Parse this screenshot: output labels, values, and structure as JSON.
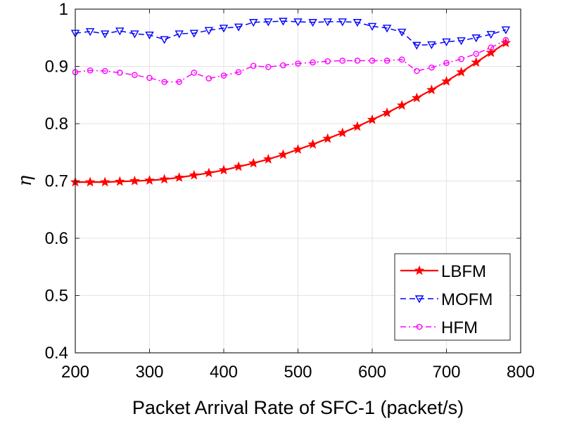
{
  "chart_data": {
    "type": "line",
    "title": "",
    "xlabel": "Packet Arrival Rate of SFC-1 (packet/s)",
    "ylabel": "η",
    "xlim": [
      200,
      800
    ],
    "ylim": [
      0.4,
      1.0
    ],
    "xticks": [
      200,
      300,
      400,
      500,
      600,
      700,
      800
    ],
    "yticks": [
      0.4,
      0.5,
      0.6,
      0.7,
      0.8,
      0.9,
      1.0
    ],
    "xtick_labels": [
      "200",
      "300",
      "400",
      "500",
      "600",
      "700",
      "800"
    ],
    "ytick_labels": [
      "0.4",
      "0.5",
      "0.6",
      "0.7",
      "0.8",
      "0.9",
      "1"
    ],
    "grid": true,
    "legend_position": "bottom-right",
    "x": [
      200,
      220,
      240,
      260,
      280,
      300,
      320,
      340,
      360,
      380,
      400,
      420,
      440,
      460,
      480,
      500,
      520,
      540,
      560,
      580,
      600,
      620,
      640,
      660,
      680,
      700,
      720,
      740,
      760,
      780
    ],
    "series": [
      {
        "name": "LBFM",
        "color": "#ff0000",
        "line_style": "solid",
        "marker": "star",
        "values": [
          0.698,
          0.698,
          0.698,
          0.699,
          0.7,
          0.701,
          0.703,
          0.706,
          0.71,
          0.714,
          0.719,
          0.725,
          0.731,
          0.738,
          0.746,
          0.755,
          0.764,
          0.774,
          0.784,
          0.795,
          0.807,
          0.819,
          0.832,
          0.845,
          0.859,
          0.874,
          0.89,
          0.907,
          0.924,
          0.941
        ]
      },
      {
        "name": "MOFM",
        "color": "#0000ff",
        "line_style": "dashed",
        "marker": "triangle-down",
        "values": [
          0.958,
          0.961,
          0.957,
          0.962,
          0.957,
          0.955,
          0.947,
          0.957,
          0.958,
          0.963,
          0.967,
          0.969,
          0.977,
          0.978,
          0.979,
          0.978,
          0.977,
          0.978,
          0.978,
          0.977,
          0.97,
          0.967,
          0.96,
          0.937,
          0.938,
          0.943,
          0.945,
          0.95,
          0.956,
          0.964
        ]
      },
      {
        "name": "HFM",
        "color": "#ff00ff",
        "line_style": "dashdot",
        "marker": "circle",
        "values": [
          0.89,
          0.893,
          0.892,
          0.889,
          0.885,
          0.88,
          0.873,
          0.873,
          0.889,
          0.879,
          0.884,
          0.89,
          0.901,
          0.899,
          0.902,
          0.905,
          0.907,
          0.909,
          0.91,
          0.91,
          0.91,
          0.91,
          0.912,
          0.892,
          0.898,
          0.906,
          0.913,
          0.922,
          0.933,
          0.946
        ]
      }
    ]
  }
}
